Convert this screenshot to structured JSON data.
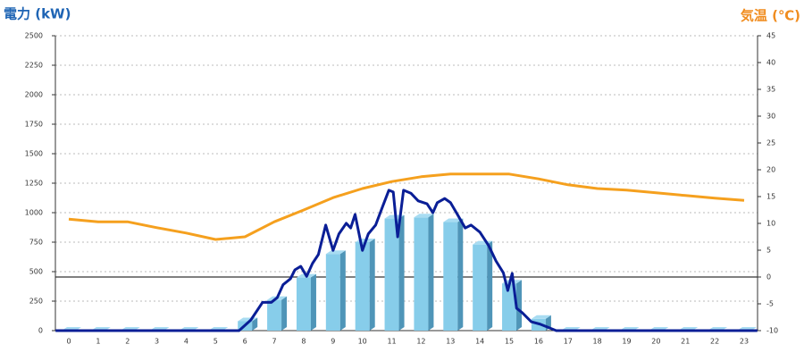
{
  "chart_data": {
    "type": "bar",
    "ylabel": "電力 (kW)",
    "y2label": "気温 (℃)",
    "categories": [
      "0",
      "1",
      "2",
      "3",
      "4",
      "5",
      "6",
      "7",
      "8",
      "9",
      "10",
      "11",
      "12",
      "13",
      "14",
      "15",
      "16",
      "17",
      "18",
      "19",
      "20",
      "21",
      "22",
      "23"
    ],
    "ylim": [
      0,
      2500
    ],
    "yticks": [
      0,
      250,
      500,
      750,
      1000,
      1250,
      1500,
      1750,
      2000,
      2250,
      2500
    ],
    "y2lim": [
      -10,
      45
    ],
    "y2ticks": [
      -10,
      -5,
      0,
      5,
      10,
      15,
      20,
      25,
      30,
      35,
      40,
      45
    ],
    "grid": true,
    "series": [
      {
        "type": "bar",
        "color": "#87cdea",
        "values": [
          0,
          0,
          0,
          0,
          0,
          0,
          80,
          260,
          450,
          650,
          750,
          950,
          960,
          920,
          730,
          400,
          100,
          0,
          0,
          0,
          0,
          0,
          0,
          0
        ]
      },
      {
        "type": "line",
        "color": "#0a1e96",
        "x": [
          -0.45,
          5.8,
          6.2,
          6.6,
          6.9,
          7.1,
          7.3,
          7.55,
          7.7,
          7.9,
          8.1,
          8.3,
          8.5,
          8.75,
          9.0,
          9.2,
          9.45,
          9.6,
          9.75,
          10.0,
          10.2,
          10.45,
          10.7,
          10.9,
          11.05,
          11.2,
          11.4,
          11.65,
          11.9,
          12.2,
          12.4,
          12.55,
          12.8,
          13.0,
          13.2,
          13.5,
          13.7,
          14.0,
          14.3,
          14.55,
          14.8,
          14.95,
          15.1,
          15.25,
          15.45,
          15.75,
          16.05,
          16.3,
          16.6,
          23.45
        ],
        "values": [
          0,
          0,
          90,
          240,
          240,
          280,
          390,
          440,
          515,
          545,
          460,
          570,
          645,
          895,
          680,
          820,
          910,
          870,
          985,
          680,
          820,
          895,
          1060,
          1190,
          1175,
          795,
          1190,
          1165,
          1100,
          1075,
          1000,
          1085,
          1120,
          1085,
          1000,
          870,
          895,
          835,
          720,
          590,
          490,
          340,
          485,
          190,
          150,
          75,
          55,
          30,
          0,
          0
        ]
      },
      {
        "type": "line",
        "axis": "y2",
        "color": "#f5a01e",
        "values": [
          10.8,
          10.3,
          10.3,
          9.2,
          8.2,
          7,
          7.5,
          10.3,
          12.5,
          14.8,
          16.5,
          17.8,
          18.7,
          19.2,
          19.2,
          19.2,
          18.3,
          17.2,
          16.5,
          16.2,
          15.7,
          15.2,
          14.7,
          14.3
        ]
      }
    ]
  }
}
